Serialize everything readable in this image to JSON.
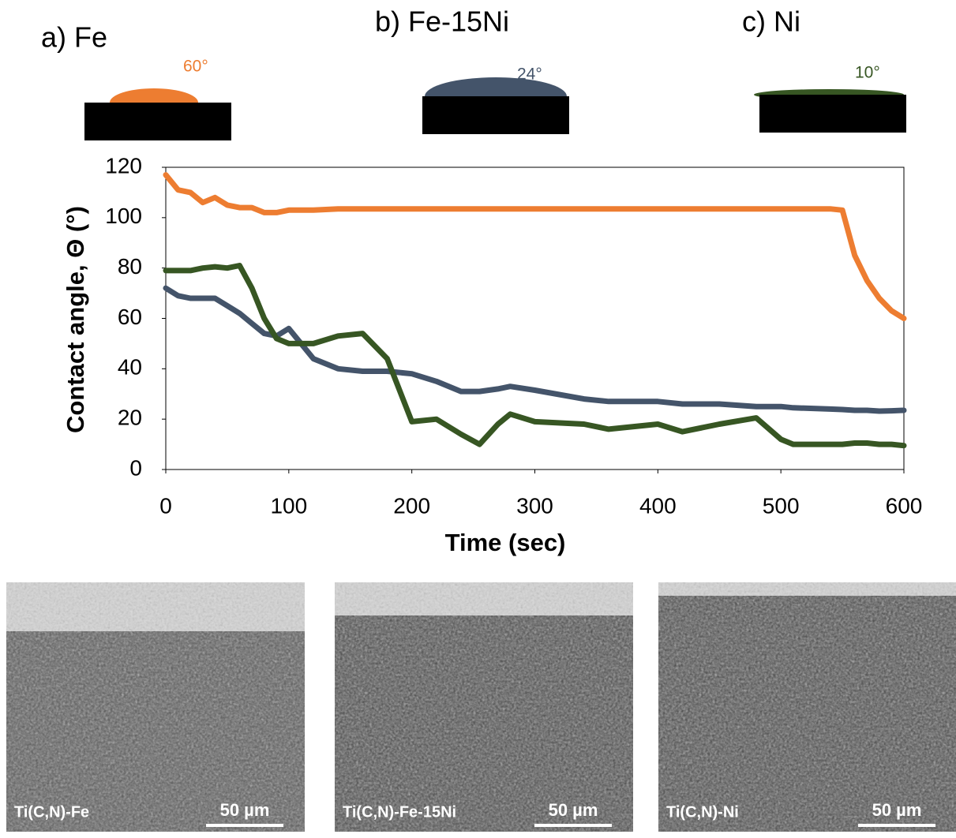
{
  "panels": [
    {
      "label": "a) Fe",
      "angle": "60°",
      "caption": "Ti(C,N)-Fe",
      "scale": "50 µm"
    },
    {
      "label": "b) Fe-15Ni",
      "angle": "24°",
      "caption": "Ti(C,N)-Fe-15Ni",
      "scale": "50 µm"
    },
    {
      "label": "c) Ni",
      "angle": "10°",
      "caption": "Ti(C,N)-Ni",
      "scale": "50 µm"
    }
  ],
  "chart_data": {
    "type": "line",
    "xlabel": "Time (sec)",
    "ylabel": "Contact angle, Θ (°)",
    "x": [
      0,
      10,
      20,
      30,
      40,
      50,
      60,
      70,
      80,
      90,
      100,
      120,
      140,
      160,
      180,
      200,
      220,
      240,
      255,
      270,
      280,
      300,
      340,
      360,
      400,
      420,
      450,
      480,
      500,
      510,
      540,
      550,
      560,
      570,
      580,
      590,
      600
    ],
    "series": [
      {
        "color": "#ed7d31",
        "values": [
          117,
          111,
          110,
          106,
          108,
          105,
          104,
          104,
          102,
          102,
          103,
          103,
          103.5,
          103.5,
          103.5,
          103.5,
          103.5,
          103.5,
          103.5,
          103.5,
          103.5,
          103.5,
          103.5,
          103.5,
          103.5,
          103.5,
          103.5,
          103.5,
          103.5,
          103.5,
          103.5,
          103,
          85,
          75,
          68,
          63,
          60
        ]
      },
      {
        "color": "#44546a",
        "values": [
          72,
          69,
          68,
          68,
          68,
          65,
          62,
          58,
          54,
          53,
          56,
          44,
          40,
          39,
          39,
          38,
          35,
          31,
          31,
          32,
          33,
          31.5,
          28,
          27,
          27,
          26,
          26,
          25,
          25,
          24.5,
          24,
          23.8,
          23.5,
          23.5,
          23.2,
          23.3,
          23.5
        ]
      },
      {
        "color": "#375623",
        "values": [
          79,
          79,
          79,
          80,
          80.5,
          80,
          81,
          72,
          60,
          52,
          50,
          50,
          53,
          54,
          44,
          19,
          20,
          14,
          10,
          18,
          22,
          19,
          18,
          16,
          18,
          15,
          18,
          20.5,
          12,
          10,
          10,
          10,
          10.5,
          10.5,
          10,
          10,
          9.5
        ]
      }
    ],
    "xlim": [
      0,
      600
    ],
    "xticks": [
      0,
      100,
      200,
      300,
      400,
      500,
      600
    ],
    "ylim": [
      0,
      120
    ],
    "yticks": [
      0,
      20,
      40,
      60,
      80,
      100,
      120
    ]
  }
}
